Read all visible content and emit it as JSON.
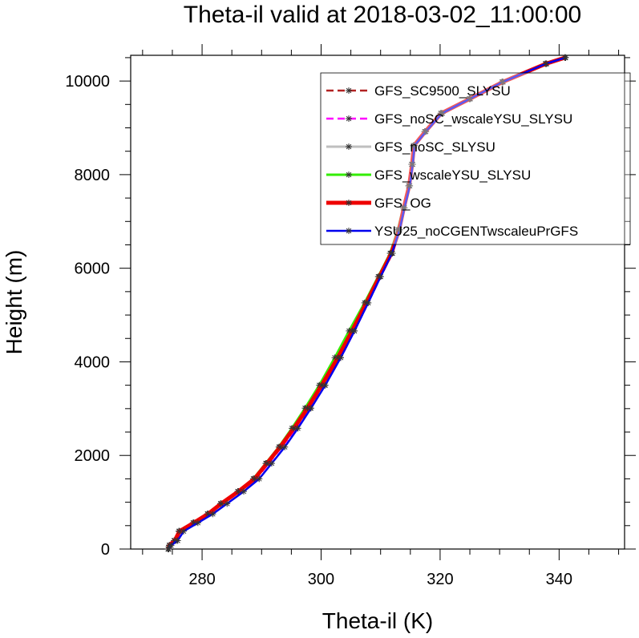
{
  "chart_data": {
    "type": "line",
    "title": "Theta-il valid at 2018-03-02_11:00:00",
    "xlabel": "Theta-il (K)",
    "ylabel": "Height (m)",
    "xlim": [
      268,
      351
    ],
    "ylim": [
      0,
      10550
    ],
    "xticks": [
      280,
      300,
      320,
      340
    ],
    "yticks": [
      0,
      2000,
      4000,
      6000,
      8000,
      10000
    ],
    "legend_position": "top-right",
    "series": [
      {
        "name": "GFS_SC9500_SLYSU",
        "color": "#b22222",
        "dash": "dashed",
        "width": 2.5,
        "x": [
          274.3,
          274.5,
          275.4,
          276.2,
          278.6,
          281.0,
          283.2,
          286.1,
          288.8,
          290.9,
          293.1,
          295.4,
          297.7,
          300.1,
          302.9,
          305.2,
          307.6,
          309.8,
          311.8,
          313.1,
          313.9,
          314.8,
          315.3,
          315.6,
          317.5,
          320.2,
          325.0,
          330.5,
          337.8,
          341.0
        ],
        "y": [
          0,
          80,
          180,
          380,
          560,
          750,
          970,
          1230,
          1500,
          1830,
          2180,
          2580,
          3010,
          3500,
          4090,
          4660,
          5260,
          5820,
          6320,
          6820,
          7290,
          7760,
          8220,
          8620,
          8920,
          9310,
          9620,
          9980,
          10370,
          10500
        ]
      },
      {
        "name": "GFS_noSC_wscaleYSU_SLYSU",
        "color": "#ff00ff",
        "dash": "dashed",
        "width": 2.5,
        "x": [
          274.3,
          274.6,
          275.6,
          276.5,
          278.8,
          281.2,
          283.5,
          286.4,
          289.1,
          291.2,
          293.4,
          295.8,
          298.2,
          300.6,
          303.3,
          305.6,
          307.9,
          310.0,
          312.0,
          313.2,
          314.0,
          314.9,
          315.4,
          315.7,
          317.6,
          320.4,
          325.1,
          330.6,
          337.9,
          341.1
        ],
        "y": [
          0,
          80,
          180,
          380,
          560,
          750,
          970,
          1230,
          1500,
          1830,
          2180,
          2580,
          3010,
          3500,
          4090,
          4660,
          5260,
          5820,
          6320,
          6820,
          7290,
          7760,
          8220,
          8620,
          8920,
          9310,
          9620,
          9980,
          10370,
          10500
        ]
      },
      {
        "name": "GFS_noSC_SLYSU",
        "color": "#bfbfbf",
        "dash": "solid",
        "width": 3,
        "x": [
          274.3,
          274.5,
          275.3,
          276.1,
          278.5,
          280.9,
          283.1,
          286.0,
          288.7,
          290.8,
          293.0,
          295.3,
          297.5,
          299.9,
          302.6,
          305.0,
          307.5,
          309.7,
          311.7,
          313.0,
          313.8,
          314.7,
          315.2,
          315.5,
          317.4,
          320.1,
          324.9,
          330.4,
          337.7,
          341.0
        ],
        "y": [
          0,
          80,
          180,
          380,
          560,
          750,
          970,
          1230,
          1500,
          1830,
          2180,
          2580,
          3010,
          3500,
          4090,
          4660,
          5260,
          5820,
          6320,
          6820,
          7290,
          7760,
          8220,
          8620,
          8920,
          9310,
          9620,
          9980,
          10370,
          10500
        ]
      },
      {
        "name": "GFS_wscaleYSU_SLYSU",
        "color": "#33ee00",
        "dash": "solid",
        "width": 3,
        "x": [
          274.3,
          274.5,
          275.3,
          276.1,
          278.5,
          280.9,
          283.1,
          286.0,
          288.6,
          290.7,
          292.9,
          295.1,
          297.3,
          299.7,
          302.3,
          304.7,
          307.3,
          309.6,
          311.6,
          312.9,
          313.8,
          314.7,
          315.2,
          315.5,
          317.4,
          320.1,
          324.9,
          330.4,
          337.7,
          341.0
        ],
        "y": [
          0,
          80,
          180,
          380,
          560,
          750,
          970,
          1230,
          1500,
          1830,
          2180,
          2580,
          3010,
          3500,
          4090,
          4660,
          5260,
          5820,
          6320,
          6820,
          7290,
          7760,
          8220,
          8620,
          8920,
          9310,
          9620,
          9980,
          10370,
          10500
        ]
      },
      {
        "name": "GFS_OG",
        "color": "#ee0000",
        "dash": "solid",
        "width": 5,
        "x": [
          274.3,
          274.5,
          275.4,
          276.2,
          278.6,
          281.0,
          283.2,
          286.1,
          288.8,
          290.9,
          293.1,
          295.4,
          297.7,
          300.1,
          302.8,
          305.2,
          307.6,
          309.8,
          311.8,
          313.1,
          313.9,
          314.8,
          315.3,
          315.6,
          317.5,
          320.2,
          325.0,
          330.5,
          337.8,
          341.0
        ],
        "y": [
          0,
          80,
          180,
          380,
          560,
          750,
          970,
          1230,
          1500,
          1830,
          2180,
          2580,
          3010,
          3500,
          4090,
          4660,
          5260,
          5820,
          6320,
          6820,
          7290,
          7760,
          8220,
          8620,
          8920,
          9310,
          9620,
          9980,
          10370,
          10500
        ]
      },
      {
        "name": "YSU25_noCGENTwscaleuPrGFS",
        "color": "#0000ee",
        "dash": "solid",
        "width": 2.5,
        "x": [
          274.4,
          274.8,
          275.9,
          276.9,
          279.3,
          281.8,
          284.2,
          287.0,
          289.6,
          291.7,
          293.9,
          296.1,
          298.3,
          300.7,
          303.3,
          305.6,
          307.9,
          310.0,
          311.9,
          313.2,
          314.0,
          314.9,
          315.4,
          315.7,
          317.6,
          320.3,
          325.0,
          330.5,
          337.8,
          341.0
        ],
        "y": [
          0,
          80,
          180,
          380,
          560,
          750,
          970,
          1230,
          1500,
          1830,
          2180,
          2580,
          3010,
          3500,
          4090,
          4660,
          5260,
          5820,
          6320,
          6820,
          7290,
          7760,
          8220,
          8620,
          8920,
          9310,
          9620,
          9980,
          10370,
          10500
        ]
      }
    ]
  }
}
